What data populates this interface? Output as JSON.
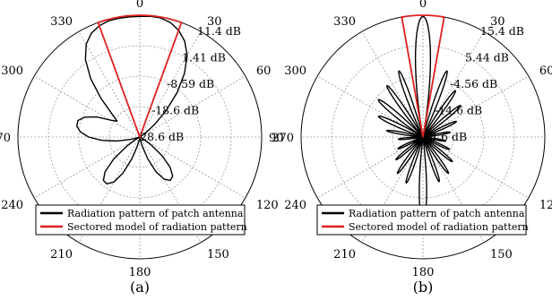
{
  "chart_data": [
    {
      "type": "polar",
      "caption": "(a)",
      "angle_ticks": [
        "0",
        "30",
        "60",
        "90",
        "120",
        "150",
        "180",
        "210",
        "240",
        "270",
        "300",
        "330"
      ],
      "radial_tick_labels": [
        "11.4 dB",
        "1.41 dB",
        "-8.59 dB",
        "-18.6 dB",
        "-28.6 dB"
      ],
      "radial_range_db": [
        -28.6,
        11.4
      ],
      "grid": true,
      "legend": {
        "position": "bottom",
        "entries": [
          "Radiation pattern of patch antenna",
          "Sectored model of radiation pattern"
        ]
      },
      "series": [
        {
          "name": "Radiation pattern of patch antenna",
          "color": "#000000",
          "points_deg_db": [
            [
              0,
              11.0
            ],
            [
              5,
              11.2
            ],
            [
              10,
              11.1
            ],
            [
              15,
              10.3
            ],
            [
              20,
              8.7
            ],
            [
              25,
              6.2
            ],
            [
              30,
              2.5
            ],
            [
              35,
              -3.0
            ],
            [
              40,
              -9.5
            ],
            [
              45,
              -16.5
            ],
            [
              50,
              -22.5
            ],
            [
              55,
              -26.5
            ],
            [
              60,
              -28.0
            ],
            [
              70,
              -28.5
            ],
            [
              80,
              -28.6
            ],
            [
              90,
              -28.6
            ],
            [
              100,
              -28.6
            ],
            [
              110,
              -28.5
            ],
            [
              120,
              -27.0
            ],
            [
              125,
              -24.0
            ],
            [
              130,
              -19.0
            ],
            [
              135,
              -14.5
            ],
            [
              140,
              -11.8
            ],
            [
              145,
              -11.2
            ],
            [
              150,
              -12.6
            ],
            [
              155,
              -16.0
            ],
            [
              160,
              -21.0
            ],
            [
              165,
              -25.5
            ],
            [
              170,
              -27.8
            ],
            [
              175,
              -28.4
            ],
            [
              180,
              -28.5
            ],
            [
              185,
              -28.5
            ],
            [
              190,
              -27.8
            ],
            [
              195,
              -25.5
            ],
            [
              200,
              -21.0
            ],
            [
              205,
              -15.5
            ],
            [
              210,
              -11.5
            ],
            [
              215,
              -9.8
            ],
            [
              220,
              -10.0
            ],
            [
              225,
              -12.5
            ],
            [
              230,
              -17.5
            ],
            [
              235,
              -23.5
            ],
            [
              240,
              -27.5
            ],
            [
              245,
              -28.5
            ],
            [
              250,
              -28.0
            ],
            [
              255,
              -25.5
            ],
            [
              260,
              -21.0
            ],
            [
              265,
              -16.0
            ],
            [
              270,
              -11.8
            ],
            [
              275,
              -9.0
            ],
            [
              280,
              -7.6
            ],
            [
              285,
              -7.6
            ],
            [
              290,
              -9.5
            ],
            [
              295,
              -13.0
            ],
            [
              300,
              -17.5
            ],
            [
              305,
              -19.5
            ],
            [
              310,
              -16.5
            ],
            [
              315,
              -10.5
            ],
            [
              320,
              -3.5
            ],
            [
              325,
              2.5
            ],
            [
              330,
              6.6
            ],
            [
              335,
              9.0
            ],
            [
              340,
              10.3
            ],
            [
              345,
              10.9
            ],
            [
              350,
              11.0
            ],
            [
              355,
              11.0
            ],
            [
              360,
              11.0
            ]
          ]
        },
        {
          "name": "Sectored model of radiation pattern",
          "color": "#e02020",
          "sector_deg": [
            -20,
            20
          ],
          "gain_db": 11.4
        }
      ]
    },
    {
      "type": "polar",
      "caption": "(b)",
      "angle_ticks": [
        "0",
        "30",
        "60",
        "90",
        "120",
        "150",
        "180",
        "210",
        "240",
        "270",
        "300",
        "330"
      ],
      "radial_tick_labels": [
        "15.4 dB",
        "5.44 dB",
        "-4.56 dB",
        "-14.6 dB",
        "-24.6 dB"
      ],
      "radial_range_db": [
        -24.6,
        15.4
      ],
      "grid": true,
      "legend": {
        "position": "bottom",
        "entries": [
          "Radiation pattern of patch antenna",
          "Sectored model of radiation pattern"
        ]
      },
      "series": [
        {
          "name": "Radiation pattern of patch antenna",
          "color": "#000000",
          "main_lobe_peak_db": 15.0,
          "lobes_center_deg_peak_db_halfwidth_deg": [
            [
              0,
              15.0,
              10
            ],
            [
              180,
              3.0,
              7
            ],
            [
              20,
              -1.5,
              5
            ],
            [
              340,
              -1.5,
              5
            ],
            [
              35,
              -6.0,
              5
            ],
            [
              325,
              -4.0,
              5
            ],
            [
              50,
              -8.5,
              5
            ],
            [
              310,
              -5.5,
              6
            ],
            [
              65,
              -12.5,
              5
            ],
            [
              295,
              -8.5,
              6
            ],
            [
              80,
              -15.5,
              5
            ],
            [
              280,
              -12.5,
              5
            ],
            [
              100,
              -17.0,
              5
            ],
            [
              265,
              -16.5,
              5
            ],
            [
              115,
              -15.0,
              5
            ],
            [
              245,
              -15.5,
              5
            ],
            [
              130,
              -12.0,
              5
            ],
            [
              230,
              -13.0,
              5
            ],
            [
              145,
              -10.0,
              5
            ],
            [
              215,
              -10.0,
              5
            ],
            [
              160,
              -9.0,
              5
            ],
            [
              200,
              -8.5,
              5
            ]
          ],
          "floor_db": -24.6
        },
        {
          "name": "Sectored model of radiation pattern",
          "color": "#e02020",
          "sector_deg": [
            -10,
            10
          ],
          "gain_db": 15.4
        }
      ]
    }
  ]
}
